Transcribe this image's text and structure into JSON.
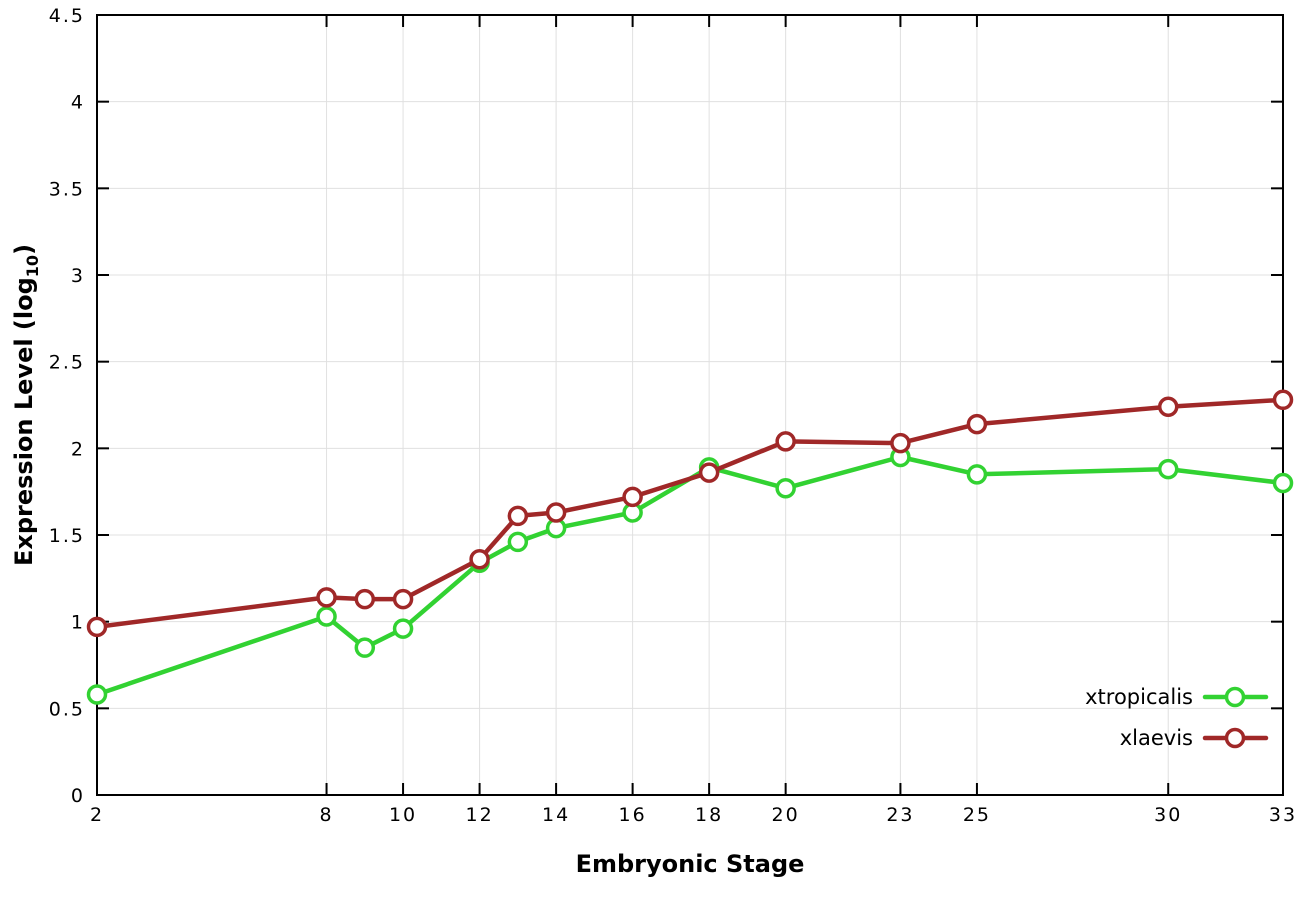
{
  "chart_data": {
    "type": "line",
    "title": "",
    "xlabel": "Embryonic Stage",
    "ylabel": "Expression Level (log10)",
    "ylabel_parts": {
      "pre": "Expression Level (log",
      "sub": "10",
      "post": ")"
    },
    "x": [
      2,
      8,
      9,
      10,
      12,
      13,
      14,
      16,
      18,
      20,
      23,
      25,
      30,
      33
    ],
    "xticks": [
      2,
      8,
      10,
      12,
      14,
      16,
      18,
      20,
      23,
      25,
      30,
      33
    ],
    "yticks": [
      0,
      0.5,
      1,
      1.5,
      2,
      2.5,
      3,
      3.5,
      4,
      4.5
    ],
    "ytick_labels": [
      "0",
      "0.5",
      "1",
      "1.5",
      "2",
      "2.5",
      "3",
      "3.5",
      "4",
      "4.5"
    ],
    "xlim": [
      2,
      33
    ],
    "ylim": [
      0,
      4.5
    ],
    "grid": true,
    "legend_position": "bottom-right",
    "series": [
      {
        "name": "xtropicalis",
        "color": "#32d232",
        "values": [
          0.58,
          1.03,
          0.85,
          0.96,
          1.34,
          1.46,
          1.54,
          1.63,
          1.89,
          1.77,
          1.95,
          1.85,
          1.88,
          1.8
        ]
      },
      {
        "name": "xlaevis",
        "color": "#a02828",
        "values": [
          0.97,
          1.14,
          1.13,
          1.13,
          1.36,
          1.61,
          1.63,
          1.72,
          1.86,
          2.04,
          2.03,
          2.14,
          2.24,
          2.28
        ]
      }
    ],
    "axis_color": "#000000",
    "grid_color": "#e0e0e0",
    "background_color": "#ffffff"
  }
}
